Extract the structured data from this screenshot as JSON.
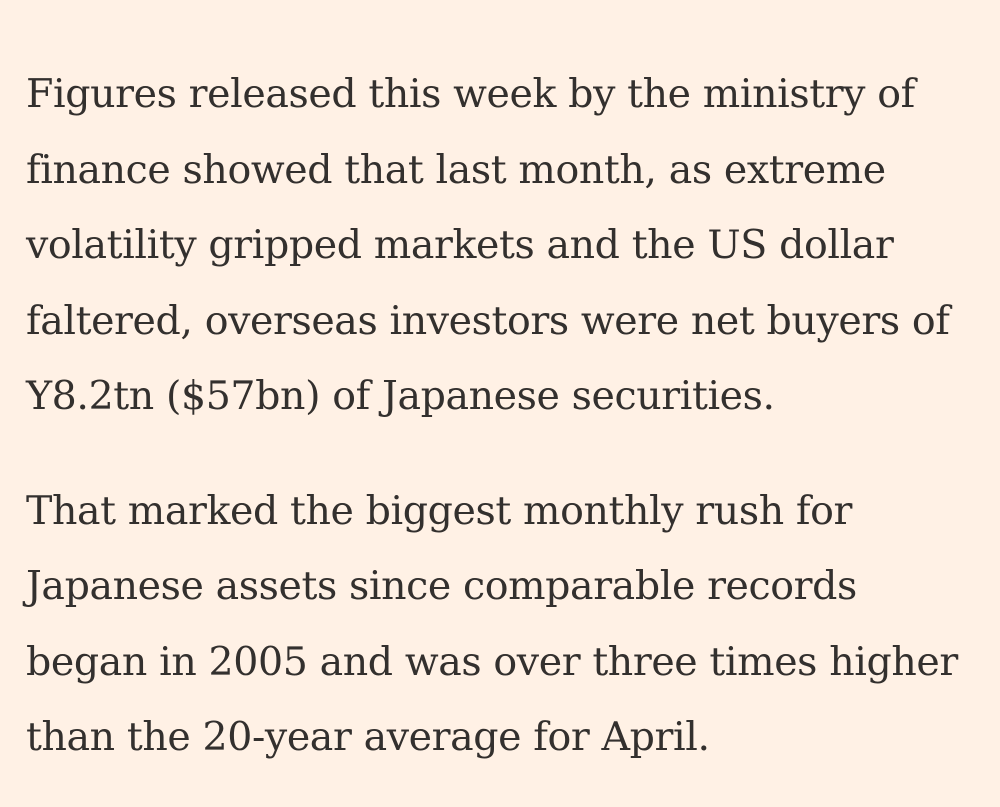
{
  "article": {
    "paragraphs": [
      {
        "lines": [
          "Figures released this week by the ministry of",
          "finance showed that last month, as extreme",
          "volatility gripped markets and the US dollar",
          "faltered, overseas investors were net buyers of",
          "Y8.2tn ($57bn) of Japanese securities."
        ]
      },
      {
        "lines": [
          "That marked the biggest monthly rush for",
          "Japanese assets since comparable records",
          "began in 2005 and was over three times higher",
          "than the 20-year average for April."
        ]
      }
    ]
  },
  "colors": {
    "background": "#fff1e5",
    "text": "#33302e"
  }
}
